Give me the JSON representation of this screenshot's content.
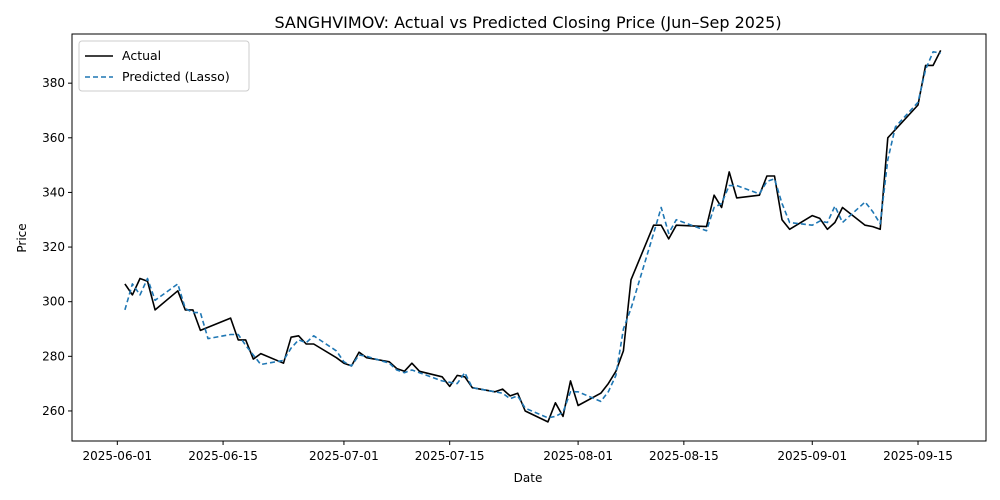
{
  "chart_data": {
    "type": "line",
    "title": "SANGHVIMOV: Actual vs Predicted Closing Price (Jun–Sep 2025)",
    "xlabel": "Date",
    "ylabel": "Price",
    "xlim": [
      "2025-05-26",
      "2025-09-24"
    ],
    "ylim": [
      249,
      398
    ],
    "x_ticks": [
      "2025-06-01",
      "2025-06-15",
      "2025-07-01",
      "2025-07-15",
      "2025-08-01",
      "2025-08-15",
      "2025-09-01",
      "2025-09-15"
    ],
    "y_ticks": [
      260,
      280,
      300,
      320,
      340,
      360,
      380
    ],
    "grid": false,
    "legend_position": "top-left",
    "series": [
      {
        "name": "Actual",
        "color": "#000000",
        "style": "solid",
        "points": [
          [
            "2025-06-02",
            306.5
          ],
          [
            "2025-06-03",
            302.5
          ],
          [
            "2025-06-04",
            308.5
          ],
          [
            "2025-06-05",
            307.5
          ],
          [
            "2025-06-06",
            297.0
          ],
          [
            "2025-06-09",
            304.0
          ],
          [
            "2025-06-10",
            297.0
          ],
          [
            "2025-06-11",
            297.0
          ],
          [
            "2025-06-12",
            289.5
          ],
          [
            "2025-06-16",
            294.0
          ],
          [
            "2025-06-17",
            286.0
          ],
          [
            "2025-06-18",
            286.0
          ],
          [
            "2025-06-19",
            279.0
          ],
          [
            "2025-06-20",
            281.0
          ],
          [
            "2025-06-23",
            277.5
          ],
          [
            "2025-06-24",
            287.0
          ],
          [
            "2025-06-25",
            287.5
          ],
          [
            "2025-06-26",
            284.5
          ],
          [
            "2025-06-27",
            284.5
          ],
          [
            "2025-06-30",
            279.5
          ],
          [
            "2025-07-01",
            277.5
          ],
          [
            "2025-07-02",
            276.5
          ],
          [
            "2025-07-03",
            281.5
          ],
          [
            "2025-07-04",
            279.5
          ],
          [
            "2025-07-07",
            278.0
          ],
          [
            "2025-07-08",
            275.5
          ],
          [
            "2025-07-09",
            274.5
          ],
          [
            "2025-07-10",
            277.5
          ],
          [
            "2025-07-11",
            274.5
          ],
          [
            "2025-07-14",
            272.5
          ],
          [
            "2025-07-15",
            269.0
          ],
          [
            "2025-07-16",
            273.0
          ],
          [
            "2025-07-17",
            272.5
          ],
          [
            "2025-07-18",
            268.5
          ],
          [
            "2025-07-21",
            267.0
          ],
          [
            "2025-07-22",
            268.0
          ],
          [
            "2025-07-23",
            265.5
          ],
          [
            "2025-07-24",
            266.5
          ],
          [
            "2025-07-25",
            260.0
          ],
          [
            "2025-07-28",
            256.0
          ],
          [
            "2025-07-29",
            263.0
          ],
          [
            "2025-07-30",
            258.0
          ],
          [
            "2025-07-31",
            271.0
          ],
          [
            "2025-08-01",
            262.0
          ],
          [
            "2025-08-04",
            266.5
          ],
          [
            "2025-08-05",
            270.0
          ],
          [
            "2025-08-06",
            274.5
          ],
          [
            "2025-08-07",
            282.0
          ],
          [
            "2025-08-08",
            308.0
          ],
          [
            "2025-08-11",
            328.0
          ],
          [
            "2025-08-12",
            328.0
          ],
          [
            "2025-08-13",
            323.0
          ],
          [
            "2025-08-14",
            328.0
          ],
          [
            "2025-08-18",
            327.5
          ],
          [
            "2025-08-19",
            339.0
          ],
          [
            "2025-08-20",
            334.5
          ],
          [
            "2025-08-21",
            347.5
          ],
          [
            "2025-08-22",
            338.0
          ],
          [
            "2025-08-25",
            339.0
          ],
          [
            "2025-08-26",
            346.0
          ],
          [
            "2025-08-27",
            346.0
          ],
          [
            "2025-08-28",
            330.0
          ],
          [
            "2025-08-29",
            326.5
          ],
          [
            "2025-09-01",
            331.5
          ],
          [
            "2025-09-02",
            330.5
          ],
          [
            "2025-09-03",
            326.5
          ],
          [
            "2025-09-04",
            329.0
          ],
          [
            "2025-09-05",
            334.5
          ],
          [
            "2025-09-08",
            328.0
          ],
          [
            "2025-09-09",
            327.5
          ],
          [
            "2025-09-10",
            326.5
          ],
          [
            "2025-09-11",
            360.0
          ],
          [
            "2025-09-12",
            363.0
          ],
          [
            "2025-09-15",
            372.0
          ],
          [
            "2025-09-16",
            386.5
          ],
          [
            "2025-09-17",
            386.5
          ],
          [
            "2025-09-18",
            392.0
          ]
        ]
      },
      {
        "name": "Predicted (Lasso)",
        "color": "#1f77b4",
        "style": "dashed",
        "points": [
          [
            "2025-06-02",
            297.0
          ],
          [
            "2025-06-03",
            306.5
          ],
          [
            "2025-06-04",
            302.5
          ],
          [
            "2025-06-05",
            308.5
          ],
          [
            "2025-06-06",
            300.5
          ],
          [
            "2025-06-09",
            306.5
          ],
          [
            "2025-06-10",
            297.5
          ],
          [
            "2025-06-11",
            296.0
          ],
          [
            "2025-06-12",
            296.0
          ],
          [
            "2025-06-13",
            286.5
          ],
          [
            "2025-06-16",
            288.0
          ],
          [
            "2025-06-17",
            288.0
          ],
          [
            "2025-06-18",
            284.0
          ],
          [
            "2025-06-19",
            280.5
          ],
          [
            "2025-06-20",
            277.0
          ],
          [
            "2025-06-23",
            278.5
          ],
          [
            "2025-06-24",
            283.0
          ],
          [
            "2025-06-25",
            286.0
          ],
          [
            "2025-06-26",
            285.0
          ],
          [
            "2025-06-27",
            287.5
          ],
          [
            "2025-06-30",
            282.0
          ],
          [
            "2025-07-01",
            278.0
          ],
          [
            "2025-07-02",
            276.5
          ],
          [
            "2025-07-03",
            280.5
          ],
          [
            "2025-07-04",
            280.0
          ],
          [
            "2025-07-07",
            277.5
          ],
          [
            "2025-07-08",
            275.0
          ],
          [
            "2025-07-09",
            274.0
          ],
          [
            "2025-07-10",
            275.0
          ],
          [
            "2025-07-11",
            274.0
          ],
          [
            "2025-07-14",
            271.0
          ],
          [
            "2025-07-15",
            270.5
          ],
          [
            "2025-07-16",
            270.0
          ],
          [
            "2025-07-17",
            274.0
          ],
          [
            "2025-07-18",
            268.5
          ],
          [
            "2025-07-21",
            267.0
          ],
          [
            "2025-07-22",
            266.5
          ],
          [
            "2025-07-23",
            264.5
          ],
          [
            "2025-07-24",
            265.5
          ],
          [
            "2025-07-25",
            261.0
          ],
          [
            "2025-07-28",
            257.5
          ],
          [
            "2025-07-29",
            258.0
          ],
          [
            "2025-07-30",
            259.5
          ],
          [
            "2025-07-31",
            267.0
          ],
          [
            "2025-08-01",
            267.0
          ],
          [
            "2025-08-04",
            263.5
          ],
          [
            "2025-08-05",
            267.0
          ],
          [
            "2025-08-06",
            273.0
          ],
          [
            "2025-08-07",
            290.0
          ],
          [
            "2025-08-08",
            297.5
          ],
          [
            "2025-08-11",
            325.0
          ],
          [
            "2025-08-12",
            334.5
          ],
          [
            "2025-08-13",
            325.0
          ],
          [
            "2025-08-14",
            330.0
          ],
          [
            "2025-08-18",
            326.0
          ],
          [
            "2025-08-19",
            334.5
          ],
          [
            "2025-08-20",
            336.0
          ],
          [
            "2025-08-21",
            342.5
          ],
          [
            "2025-08-22",
            342.5
          ],
          [
            "2025-08-25",
            339.5
          ],
          [
            "2025-08-26",
            344.0
          ],
          [
            "2025-08-27",
            345.0
          ],
          [
            "2025-08-28",
            336.0
          ],
          [
            "2025-08-29",
            329.0
          ],
          [
            "2025-09-01",
            328.0
          ],
          [
            "2025-09-02",
            329.5
          ],
          [
            "2025-09-03",
            329.0
          ],
          [
            "2025-09-04",
            335.0
          ],
          [
            "2025-09-05",
            329.0
          ],
          [
            "2025-09-08",
            336.5
          ],
          [
            "2025-09-09",
            333.0
          ],
          [
            "2025-09-10",
            328.5
          ],
          [
            "2025-09-11",
            352.0
          ],
          [
            "2025-09-12",
            364.0
          ],
          [
            "2025-09-15",
            373.0
          ],
          [
            "2025-09-16",
            385.0
          ],
          [
            "2025-09-17",
            391.5
          ],
          [
            "2025-09-18",
            391.0
          ]
        ]
      }
    ]
  }
}
